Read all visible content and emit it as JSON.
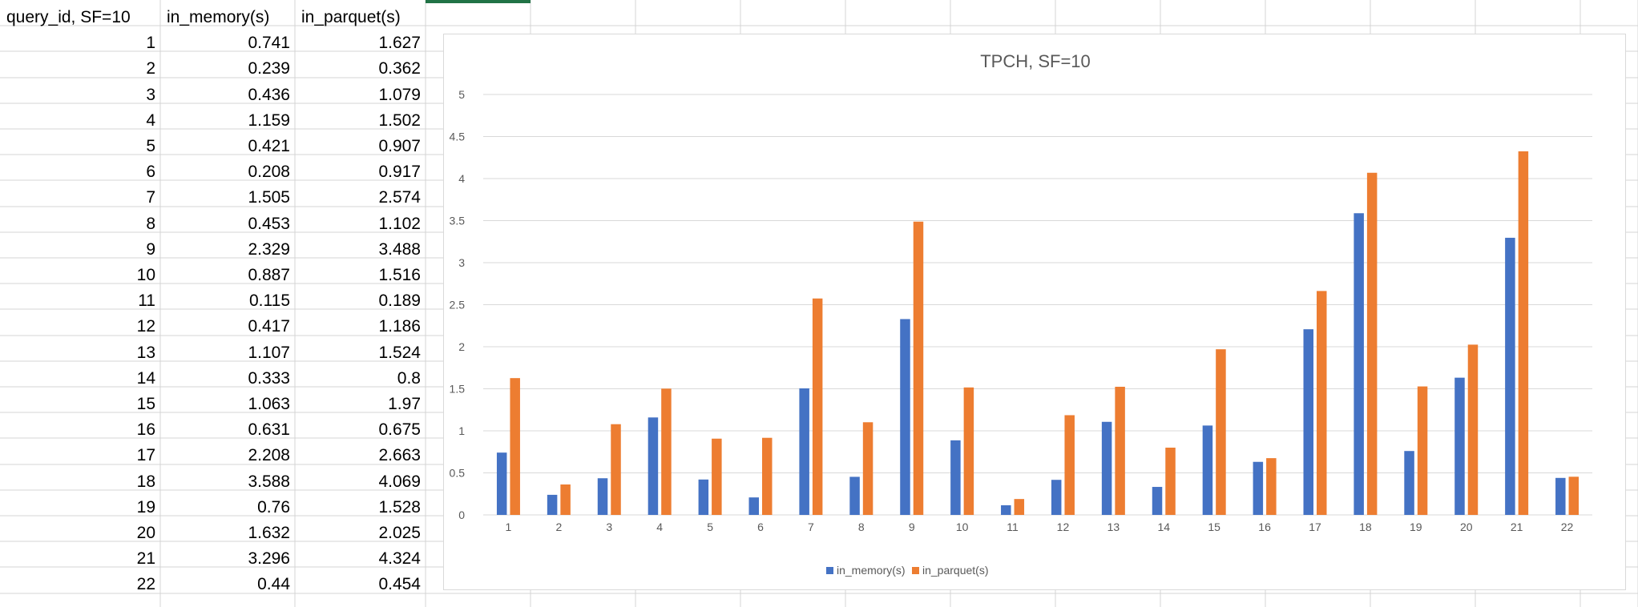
{
  "sheet": {
    "headers": [
      "query_id, SF=10",
      "in_memory(s)",
      "in_parquet(s)"
    ],
    "rows": [
      [
        "1",
        "0.741",
        "1.627"
      ],
      [
        "2",
        "0.239",
        "0.362"
      ],
      [
        "3",
        "0.436",
        "1.079"
      ],
      [
        "4",
        "1.159",
        "1.502"
      ],
      [
        "5",
        "0.421",
        "0.907"
      ],
      [
        "6",
        "0.208",
        "0.917"
      ],
      [
        "7",
        "1.505",
        "2.574"
      ],
      [
        "8",
        "0.453",
        "1.102"
      ],
      [
        "9",
        "2.329",
        "3.488"
      ],
      [
        "10",
        "0.887",
        "1.516"
      ],
      [
        "11",
        "0.115",
        "0.189"
      ],
      [
        "12",
        "0.417",
        "1.186"
      ],
      [
        "13",
        "1.107",
        "1.524"
      ],
      [
        "14",
        "0.333",
        "0.8"
      ],
      [
        "15",
        "1.063",
        "1.97"
      ],
      [
        "16",
        "0.631",
        "0.675"
      ],
      [
        "17",
        "2.208",
        "2.663"
      ],
      [
        "18",
        "3.588",
        "4.069"
      ],
      [
        "19",
        "0.76",
        "1.528"
      ],
      [
        "20",
        "1.632",
        "2.025"
      ],
      [
        "21",
        "3.296",
        "4.324"
      ],
      [
        "22",
        "0.44",
        "0.454"
      ]
    ],
    "selected_cell_color": "#217346"
  },
  "chart_data": {
    "type": "bar",
    "title": "TPCH, SF=10",
    "xlabel": "",
    "ylabel": "",
    "categories": [
      "1",
      "2",
      "3",
      "4",
      "5",
      "6",
      "7",
      "8",
      "9",
      "10",
      "11",
      "12",
      "13",
      "14",
      "15",
      "16",
      "17",
      "18",
      "19",
      "20",
      "21",
      "22"
    ],
    "series": [
      {
        "name": "in_memory(s)",
        "color": "#4472C4",
        "values": [
          0.741,
          0.239,
          0.436,
          1.159,
          0.421,
          0.208,
          1.505,
          0.453,
          2.329,
          0.887,
          0.115,
          0.417,
          1.107,
          0.333,
          1.063,
          0.631,
          2.208,
          3.588,
          0.76,
          1.632,
          3.296,
          0.44
        ]
      },
      {
        "name": "in_parquet(s)",
        "color": "#ED7D31",
        "values": [
          1.627,
          0.362,
          1.079,
          1.502,
          0.907,
          0.917,
          2.574,
          1.102,
          3.488,
          1.516,
          0.189,
          1.186,
          1.524,
          0.8,
          1.97,
          0.675,
          2.663,
          4.069,
          1.528,
          2.025,
          4.324,
          0.454
        ]
      }
    ],
    "ylim": [
      0,
      5
    ],
    "yticks": [
      "0",
      "0.5",
      "1",
      "1.5",
      "2",
      "2.5",
      "3",
      "3.5",
      "4",
      "4.5",
      "5"
    ],
    "grid": true,
    "legend": "bottom"
  }
}
